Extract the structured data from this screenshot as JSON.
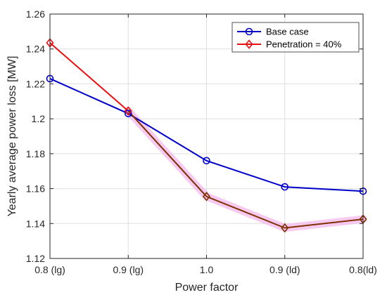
{
  "chart_data": {
    "type": "line",
    "categories": [
      "0.8 (lg)",
      "0.9 (lg)",
      "1.0",
      "0.9 (ld)",
      "0.8(ld)"
    ],
    "xlabel": "Power factor",
    "ylabel": "Yearly average power loss [MW]",
    "ylim": [
      1.12,
      1.26
    ],
    "yticks": [
      1.12,
      1.14,
      1.16,
      1.18,
      1.2,
      1.22,
      1.24,
      1.26
    ],
    "ytick_labels": [
      "1.12",
      "1.14",
      "1.16",
      "1.18",
      "1.2",
      "1.22",
      "1.24",
      "1.26"
    ],
    "grid": true,
    "legend_position": "top-right",
    "series": [
      {
        "name": "Base case",
        "color": "#0000cc",
        "marker": "circle",
        "values": [
          1.223,
          1.203,
          1.176,
          1.161,
          1.1585
        ]
      },
      {
        "name": "Penetration = 40%",
        "color": "#e81010",
        "marker": "diamond",
        "values": [
          1.2435,
          1.2045,
          1.1555,
          1.1375,
          1.1425
        ]
      }
    ],
    "overlap_color": "#803000",
    "highlight_color": "#f4b8ec"
  }
}
